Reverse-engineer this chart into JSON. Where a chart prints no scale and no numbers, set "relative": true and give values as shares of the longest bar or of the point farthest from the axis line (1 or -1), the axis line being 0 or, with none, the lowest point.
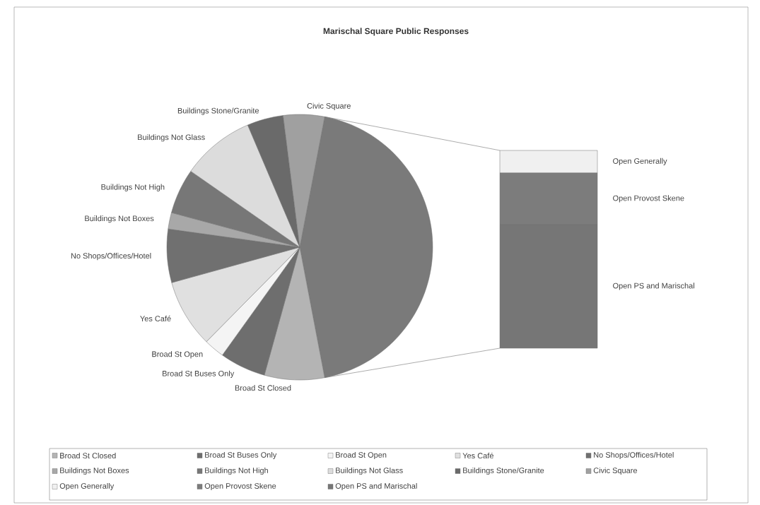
{
  "chart_data": [
    {
      "type": "pie",
      "title": "Marischal Square Public Responses",
      "categories": [
        null,
        "Broad St Closed",
        "Broad St Buses Only",
        "Broad St Open",
        "Yes Café",
        "No Shops/Offices/Hotel",
        "Buildings Not Boxes",
        "Buildings Not High",
        "Buildings Not Glass",
        "Buildings Stone/Granite",
        "Civic Square"
      ],
      "values": [
        44.0,
        7.3,
        5.6,
        2.5,
        8.3,
        6.5,
        2.0,
        5.5,
        8.9,
        4.4,
        5.0
      ],
      "colors": [
        "#7a7a7a",
        "#b4b4b4",
        "#6e6e6e",
        "#f4f4f4",
        "#e0e0e0",
        "#707070",
        "#a8a8a8",
        "#777777",
        "#dcdcdc",
        "#6a6a6a",
        "#a0a0a0"
      ],
      "legend": "bottom"
    },
    {
      "type": "bar",
      "stacked": true,
      "relative": true,
      "categories": [
        null
      ],
      "series": [
        {
          "name": "Open PS and Marischal",
          "color": "#767676",
          "values": [
            0.625
          ]
        },
        {
          "name": "Open Provost Skene",
          "color": "#7c7c7c",
          "values": [
            0.261
          ]
        },
        {
          "name": "Open Generally",
          "color": "#f0f0f0",
          "values": [
            0.114
          ]
        }
      ]
    }
  ]
}
